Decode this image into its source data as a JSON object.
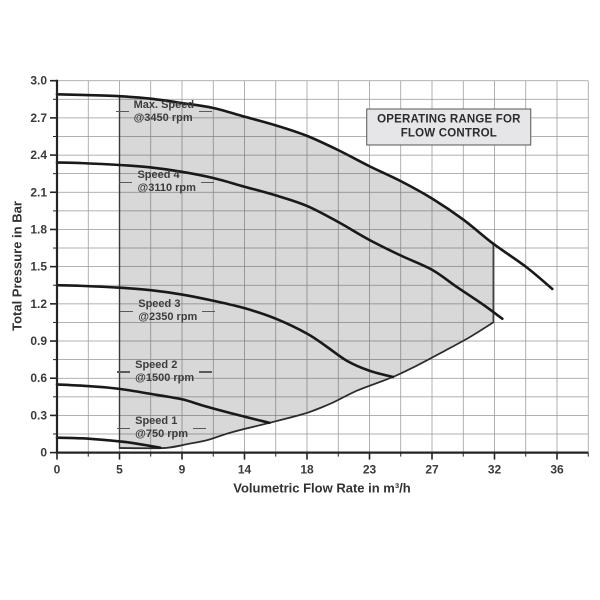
{
  "chart_data": {
    "type": "line",
    "xlabel": "Volumetric Flow Rate in m³/h",
    "ylabel": "Total Pressure in Bar",
    "x_tick_values": [
      0,
      5,
      9,
      14,
      18,
      23,
      27,
      32,
      36
    ],
    "x_tick_labels": [
      "0",
      "5",
      "9",
      "14",
      "18",
      "23",
      "27",
      "32",
      "36"
    ],
    "y_tick_values": [
      0,
      0.3,
      0.6,
      0.9,
      1.2,
      1.5,
      1.8,
      2.1,
      2.4,
      2.7,
      3.0
    ],
    "y_tick_labels": [
      "0",
      "0.3",
      "0.6",
      "0.9",
      "1.2",
      "1.5",
      "1.8",
      "2.1",
      "2.4",
      "2.7",
      "3.0"
    ],
    "ylim": [
      0,
      3.0
    ],
    "grid": {
      "on": true,
      "horizontal_divisions": 20,
      "vertical_minor_per_major": 2
    },
    "legend_position": "none",
    "title_box": {
      "line1": "OPERATING RANGE FOR",
      "line2": "FLOW CONTROL",
      "flow": 28.35,
      "pressure": 2.63
    },
    "series": [
      {
        "id": "max-speed",
        "name": "Max. Speed",
        "rpm": "@3450 rpm",
        "points": [
          [
            0,
            2.89
          ],
          [
            2,
            2.885
          ],
          [
            5,
            2.875
          ],
          [
            7,
            2.855
          ],
          [
            9,
            2.82
          ],
          [
            11.5,
            2.78
          ],
          [
            14,
            2.71
          ],
          [
            16,
            2.64
          ],
          [
            18,
            2.555
          ],
          [
            20.5,
            2.44
          ],
          [
            23,
            2.31
          ],
          [
            25,
            2.19
          ],
          [
            27,
            2.05
          ],
          [
            29.5,
            1.88
          ],
          [
            31.9,
            1.685
          ],
          [
            34,
            1.5
          ],
          [
            35.7,
            1.32
          ]
        ]
      },
      {
        "id": "speed-4",
        "name": "Speed 4",
        "rpm": "@3110 rpm",
        "points": [
          [
            0,
            2.34
          ],
          [
            2,
            2.335
          ],
          [
            5,
            2.32
          ],
          [
            7,
            2.3
          ],
          [
            9,
            2.265
          ],
          [
            11.5,
            2.215
          ],
          [
            14,
            2.145
          ],
          [
            16,
            2.075
          ],
          [
            18,
            1.99
          ],
          [
            20.5,
            1.86
          ],
          [
            23,
            1.715
          ],
          [
            25,
            1.59
          ],
          [
            27,
            1.475
          ],
          [
            29,
            1.335
          ],
          [
            31,
            1.2
          ],
          [
            32.5,
            1.08
          ]
        ]
      },
      {
        "id": "speed-3",
        "name": "Speed 3",
        "rpm": "@2350 rpm",
        "points": [
          [
            0,
            1.35
          ],
          [
            2,
            1.345
          ],
          [
            5,
            1.33
          ],
          [
            7,
            1.31
          ],
          [
            9,
            1.275
          ],
          [
            11.5,
            1.225
          ],
          [
            14,
            1.165
          ],
          [
            16,
            1.08
          ],
          [
            18,
            0.96
          ],
          [
            19.5,
            0.86
          ],
          [
            21.2,
            0.74
          ],
          [
            23,
            0.66
          ],
          [
            24.5,
            0.61
          ]
        ]
      },
      {
        "id": "speed-2",
        "name": "Speed 2",
        "rpm": "@1500 rpm",
        "points": [
          [
            0,
            0.55
          ],
          [
            2,
            0.54
          ],
          [
            4,
            0.525
          ],
          [
            5.5,
            0.505
          ],
          [
            7.4,
            0.465
          ],
          [
            9,
            0.43
          ],
          [
            11,
            0.37
          ],
          [
            13.6,
            0.3
          ],
          [
            15.6,
            0.24
          ]
        ]
      },
      {
        "id": "speed-1",
        "name": "Speed 1",
        "rpm": "@750 rpm",
        "points": [
          [
            0,
            0.12
          ],
          [
            2,
            0.115
          ],
          [
            4,
            0.1
          ],
          [
            5.7,
            0.08
          ],
          [
            7.6,
            0.04
          ]
        ]
      }
    ],
    "min_flow_boundary": [
      [
        5,
        0.037
      ],
      [
        7.9,
        0.037
      ],
      [
        9.5,
        0.07
      ],
      [
        11,
        0.1
      ],
      [
        13,
        0.165
      ],
      [
        15.6,
        0.24
      ],
      [
        18,
        0.32
      ],
      [
        20,
        0.4
      ],
      [
        22,
        0.5
      ],
      [
        24.5,
        0.61
      ],
      [
        26,
        0.7
      ],
      [
        28,
        0.82
      ],
      [
        30,
        0.93
      ],
      [
        31.9,
        1.05
      ]
    ],
    "operating_region_outline": [
      [
        5,
        0.037
      ],
      [
        7.9,
        0.037
      ],
      [
        9.5,
        0.07
      ],
      [
        11,
        0.1
      ],
      [
        13,
        0.165
      ],
      [
        15.6,
        0.24
      ],
      [
        18,
        0.32
      ],
      [
        20,
        0.4
      ],
      [
        22,
        0.5
      ],
      [
        24.5,
        0.61
      ],
      [
        26,
        0.7
      ],
      [
        28,
        0.82
      ],
      [
        30,
        0.93
      ],
      [
        31.9,
        1.05
      ],
      [
        31.9,
        1.685
      ],
      [
        29.5,
        1.88
      ],
      [
        27,
        2.05
      ],
      [
        25,
        2.19
      ],
      [
        23,
        2.31
      ],
      [
        20.5,
        2.44
      ],
      [
        18,
        2.555
      ],
      [
        16,
        2.64
      ],
      [
        14,
        2.71
      ],
      [
        11.5,
        2.78
      ],
      [
        9,
        2.82
      ],
      [
        7,
        2.855
      ],
      [
        5,
        2.875
      ]
    ],
    "labels": [
      {
        "line1": "Max. Speed",
        "line2": "@3450 rpm",
        "flow": 5.9,
        "pressure": 2.75
      },
      {
        "line1": "Speed 4",
        "line2": "@3110 rpm",
        "flow": 6.15,
        "pressure": 2.18
      },
      {
        "line1": "Speed 3",
        "line2": "@2350 rpm",
        "flow": 6.2,
        "pressure": 1.14
      },
      {
        "line1": "Speed 2",
        "line2": "@1500 rpm",
        "flow": 6.0,
        "pressure": 0.65
      },
      {
        "line1": "Speed 1",
        "line2": "@750 rpm",
        "flow": 6.0,
        "pressure": 0.195
      }
    ],
    "colors": {
      "curve": "#19191b",
      "boundary": "#2c2c2e",
      "grid": "#97979a",
      "axis": "#242426",
      "region_fill": "rgba(60,60,66,0.20)",
      "region_edge": "#39393b",
      "text": "#3a3a3c"
    }
  }
}
